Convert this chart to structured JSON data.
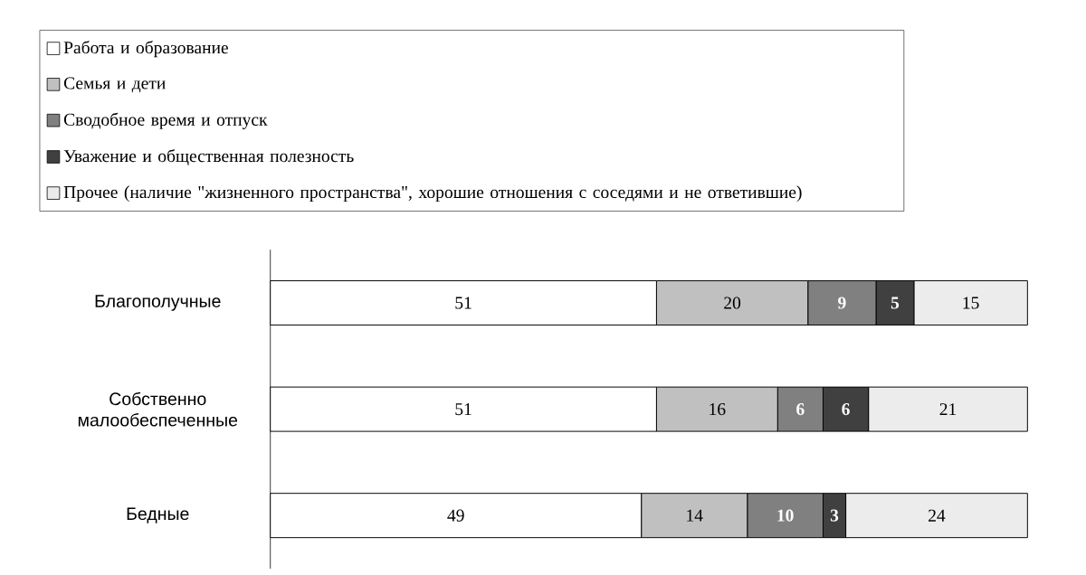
{
  "chart_data": {
    "type": "bar",
    "orientation": "horizontal",
    "stacked": true,
    "data_labels": true,
    "legend": "top",
    "categories": [
      "Благополучные",
      "Собственно малообеспеченные",
      "Бедные"
    ],
    "series": [
      {
        "name": "Работа и образование",
        "color": "#ffffff",
        "values": [
          51,
          51,
          49
        ]
      },
      {
        "name": "Семья и дети",
        "color": "#c0c0c0",
        "values": [
          20,
          16,
          14
        ]
      },
      {
        "name": "Сводобное время и отпуск",
        "color": "#808080",
        "values": [
          9,
          6,
          10
        ]
      },
      {
        "name": "Уважение и общественная полезность",
        "color": "#404040",
        "values": [
          5,
          6,
          3
        ]
      },
      {
        "name": "Прочее (наличие \"жизненного пространства\", хорошие отношения с соседями и не ответившие)",
        "color": "#ececec",
        "values": [
          15,
          21,
          24
        ]
      }
    ]
  }
}
